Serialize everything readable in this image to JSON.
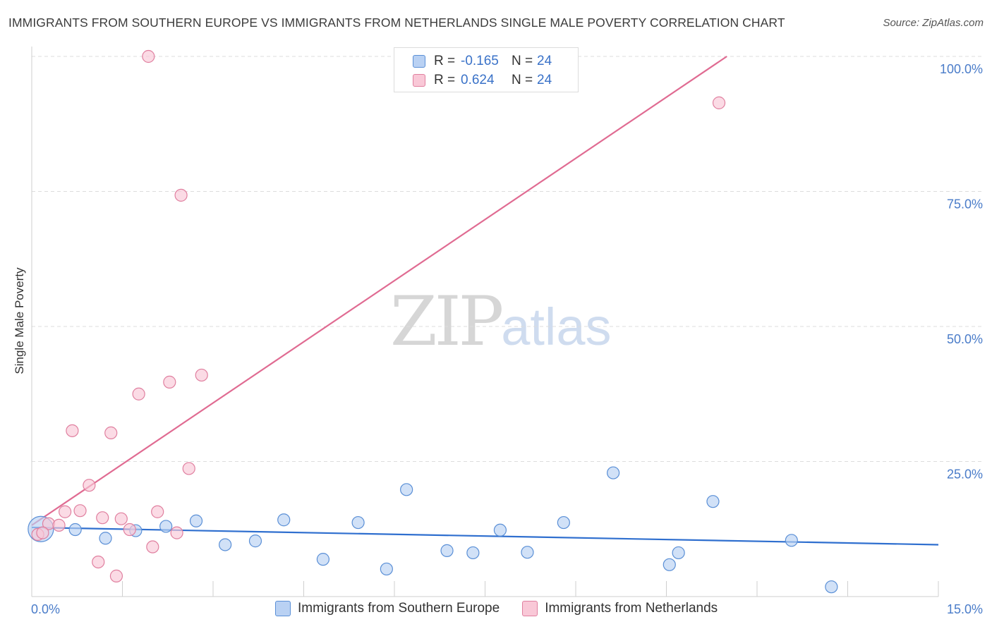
{
  "header": {
    "title": "IMMIGRANTS FROM SOUTHERN EUROPE VS IMMIGRANTS FROM NETHERLANDS SINGLE MALE POVERTY CORRELATION CHART",
    "source": "Source: ZipAtlas.com"
  },
  "watermark": {
    "zip": "ZIP",
    "atlas": "atlas"
  },
  "legend": {
    "rows": [
      {
        "r_label": "R =",
        "r_value": "-0.165",
        "n_label": "N =",
        "n_value": "24"
      },
      {
        "r_label": "R =",
        "r_value": "0.624",
        "n_label": "N =",
        "n_value": "24"
      }
    ]
  },
  "colors": {
    "blue_fill": "#b9d1f3",
    "blue_stroke": "#5a8fd6",
    "blue_line": "#2f6fcf",
    "pink_fill": "#f9c8d7",
    "pink_stroke": "#e07f9f",
    "pink_line": "#e06b92",
    "tick_text": "#4a7cc9",
    "grid": "#dddddd"
  },
  "chart_data": {
    "type": "scatter",
    "title": "IMMIGRANTS FROM SOUTHERN EUROPE VS IMMIGRANTS FROM NETHERLANDS SINGLE MALE POVERTY CORRELATION CHART",
    "xlabel": "",
    "ylabel": "Single Male Poverty",
    "xlim": [
      0,
      15
    ],
    "ylim": [
      0,
      100
    ],
    "x_tick_labels": [
      "0.0%",
      "15.0%"
    ],
    "y_ticks": [
      25,
      50,
      75,
      100
    ],
    "y_tick_labels": [
      "25.0%",
      "50.0%",
      "75.0%",
      "100.0%"
    ],
    "legend_position": "top-center",
    "series": [
      {
        "name": "Immigrants from Southern Europe",
        "color": "#5a8fd6",
        "r": -0.165,
        "n": 24,
        "trend": {
          "x": [
            0,
            15
          ],
          "y": [
            12.8,
            9.6
          ]
        },
        "points": [
          {
            "x": 0.15,
            "y": 12.5,
            "big": true
          },
          {
            "x": 0.72,
            "y": 12.4
          },
          {
            "x": 1.22,
            "y": 10.8
          },
          {
            "x": 1.72,
            "y": 12.2
          },
          {
            "x": 2.22,
            "y": 13.0
          },
          {
            "x": 2.72,
            "y": 14.0
          },
          {
            "x": 3.2,
            "y": 9.6
          },
          {
            "x": 3.7,
            "y": 10.3
          },
          {
            "x": 4.17,
            "y": 14.2
          },
          {
            "x": 4.82,
            "y": 6.9
          },
          {
            "x": 5.4,
            "y": 13.7
          },
          {
            "x": 5.87,
            "y": 5.1
          },
          {
            "x": 6.2,
            "y": 19.8
          },
          {
            "x": 6.87,
            "y": 8.5
          },
          {
            "x": 7.3,
            "y": 8.1
          },
          {
            "x": 7.75,
            "y": 12.3
          },
          {
            "x": 8.2,
            "y": 8.2
          },
          {
            "x": 8.8,
            "y": 13.7
          },
          {
            "x": 9.62,
            "y": 22.9
          },
          {
            "x": 10.55,
            "y": 5.9
          },
          {
            "x": 10.7,
            "y": 8.1
          },
          {
            "x": 11.27,
            "y": 17.6
          },
          {
            "x": 12.57,
            "y": 10.4
          },
          {
            "x": 13.23,
            "y": 1.8
          }
        ]
      },
      {
        "name": "Immigrants from Netherlands",
        "color": "#e07f9f",
        "r": 0.624,
        "n": 24,
        "trend": {
          "x": [
            0,
            11.5
          ],
          "y": [
            13.2,
            100
          ]
        },
        "points": [
          {
            "x": 0.1,
            "y": 11.5
          },
          {
            "x": 0.28,
            "y": 13.5
          },
          {
            "x": 0.45,
            "y": 13.2
          },
          {
            "x": 0.55,
            "y": 15.7
          },
          {
            "x": 0.67,
            "y": 30.7
          },
          {
            "x": 0.8,
            "y": 15.9
          },
          {
            "x": 0.95,
            "y": 20.6
          },
          {
            "x": 1.1,
            "y": 6.4
          },
          {
            "x": 1.17,
            "y": 14.6
          },
          {
            "x": 1.31,
            "y": 30.3
          },
          {
            "x": 1.4,
            "y": 3.8
          },
          {
            "x": 1.48,
            "y": 14.4
          },
          {
            "x": 1.62,
            "y": 12.4
          },
          {
            "x": 1.77,
            "y": 37.5
          },
          {
            "x": 1.93,
            "y": 100
          },
          {
            "x": 2.0,
            "y": 9.2
          },
          {
            "x": 2.08,
            "y": 15.7
          },
          {
            "x": 2.28,
            "y": 39.7
          },
          {
            "x": 2.4,
            "y": 11.8
          },
          {
            "x": 2.47,
            "y": 74.3
          },
          {
            "x": 2.6,
            "y": 23.7
          },
          {
            "x": 2.81,
            "y": 41.0
          },
          {
            "x": 11.37,
            "y": 91.4
          },
          {
            "x": 0.18,
            "y": 11.8
          }
        ]
      }
    ]
  }
}
